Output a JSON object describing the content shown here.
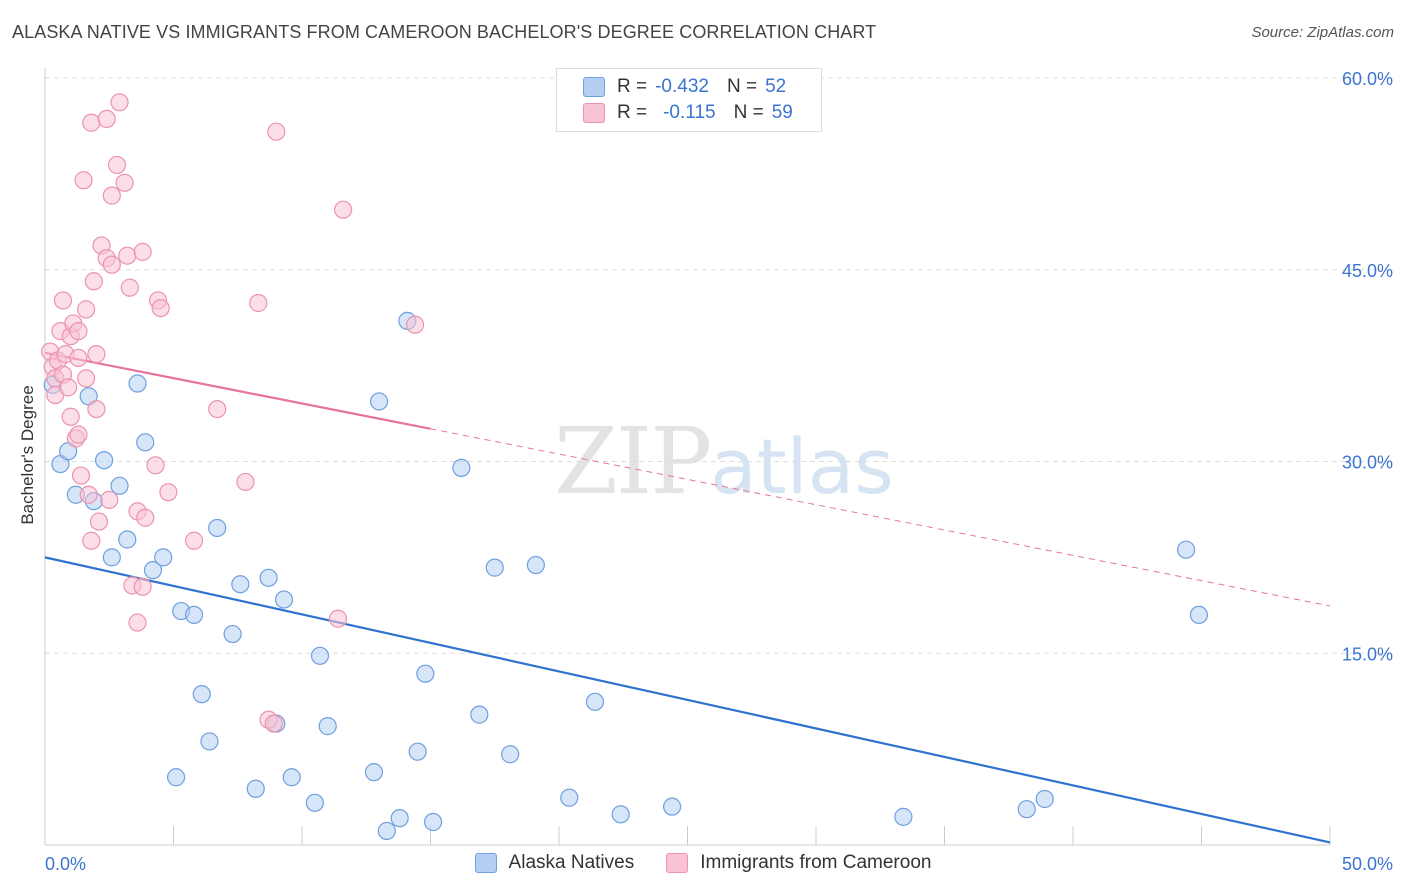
{
  "title": "ALASKA NATIVE VS IMMIGRANTS FROM CAMEROON BACHELOR'S DEGREE CORRELATION CHART",
  "source": "Source: ZipAtlas.com",
  "watermark": {
    "zip": "ZIP",
    "atlas": "atlas"
  },
  "legend": {
    "rows": [
      {
        "r_label": "R =",
        "r_value": "-0.432",
        "n_label": "N =",
        "n_value": "52"
      },
      {
        "r_label": "R =",
        "r_value": "-0.115",
        "n_label": "N =",
        "n_value": "59"
      }
    ]
  },
  "colors": {
    "blue_fill": "#b5cff2",
    "blue_stroke": "#6f9fdf",
    "blue_line": "#2f73d1",
    "pink_fill": "#f8c3d3",
    "pink_stroke": "#ec93ae",
    "pink_line": "#e7739a",
    "tick_label": "#3b74d1",
    "grid": "#dddddd"
  },
  "chart_data": {
    "type": "scatter",
    "title": "ALASKA NATIVE VS IMMIGRANTS FROM CAMEROON BACHELOR'S DEGREE CORRELATION CHART",
    "xlabel": "",
    "ylabel": "Bachelor's Degree",
    "xlim": [
      0,
      50
    ],
    "ylim": [
      0,
      60
    ],
    "x_tick_labels": [
      "0.0%",
      "50.0%"
    ],
    "y_ticks": [
      15,
      30,
      45,
      60
    ],
    "y_tick_labels": [
      "15.0%",
      "30.0%",
      "45.0%",
      "60.0%"
    ],
    "grid": true,
    "series": [
      {
        "name": "Alaska Natives",
        "color": "blue",
        "trend": {
          "x": [
            0,
            50
          ],
          "y": [
            22.5,
            0.2
          ],
          "dashed_from": null
        },
        "points": [
          [
            0.3,
            36.0
          ],
          [
            0.6,
            29.8
          ],
          [
            0.9,
            30.8
          ],
          [
            1.2,
            27.4
          ],
          [
            1.7,
            35.1
          ],
          [
            1.9,
            26.9
          ],
          [
            2.3,
            30.1
          ],
          [
            2.6,
            22.5
          ],
          [
            2.9,
            28.1
          ],
          [
            3.2,
            23.9
          ],
          [
            3.6,
            36.1
          ],
          [
            3.9,
            31.5
          ],
          [
            4.2,
            21.5
          ],
          [
            4.6,
            22.5
          ],
          [
            5.1,
            5.3
          ],
          [
            5.3,
            18.3
          ],
          [
            5.8,
            18.0
          ],
          [
            6.1,
            11.8
          ],
          [
            6.4,
            8.1
          ],
          [
            6.7,
            24.8
          ],
          [
            7.3,
            16.5
          ],
          [
            7.6,
            20.4
          ],
          [
            8.2,
            4.4
          ],
          [
            8.7,
            20.9
          ],
          [
            9.0,
            9.5
          ],
          [
            9.3,
            19.2
          ],
          [
            9.6,
            5.3
          ],
          [
            10.5,
            3.3
          ],
          [
            10.7,
            14.8
          ],
          [
            11.0,
            9.3
          ],
          [
            12.8,
            5.7
          ],
          [
            13.0,
            34.7
          ],
          [
            13.3,
            1.1
          ],
          [
            13.8,
            2.1
          ],
          [
            14.1,
            41.0
          ],
          [
            14.5,
            7.3
          ],
          [
            14.8,
            13.4
          ],
          [
            15.1,
            1.8
          ],
          [
            16.2,
            29.5
          ],
          [
            16.9,
            10.2
          ],
          [
            17.5,
            21.7
          ],
          [
            18.1,
            7.1
          ],
          [
            19.1,
            21.9
          ],
          [
            20.4,
            3.7
          ],
          [
            21.4,
            11.2
          ],
          [
            22.4,
            2.4
          ],
          [
            24.4,
            3.0
          ],
          [
            33.4,
            2.2
          ],
          [
            38.2,
            2.8
          ],
          [
            38.9,
            3.6
          ],
          [
            44.4,
            23.1
          ],
          [
            44.9,
            18.0
          ]
        ]
      },
      {
        "name": "Immigrants from Cameroon",
        "color": "pink",
        "trend": {
          "x": [
            0,
            50
          ],
          "y": [
            38.5,
            18.7
          ],
          "dashed_from": 15
        },
        "points": [
          [
            0.2,
            38.6
          ],
          [
            0.3,
            37.4
          ],
          [
            0.4,
            36.5
          ],
          [
            0.4,
            35.2
          ],
          [
            0.5,
            37.9
          ],
          [
            0.6,
            40.2
          ],
          [
            0.7,
            36.8
          ],
          [
            0.7,
            42.6
          ],
          [
            0.8,
            38.4
          ],
          [
            0.9,
            35.8
          ],
          [
            1.0,
            33.5
          ],
          [
            1.0,
            39.8
          ],
          [
            1.1,
            40.8
          ],
          [
            1.2,
            31.8
          ],
          [
            1.3,
            40.2
          ],
          [
            1.3,
            32.1
          ],
          [
            1.4,
            28.9
          ],
          [
            1.5,
            52.0
          ],
          [
            1.6,
            41.9
          ],
          [
            1.6,
            36.5
          ],
          [
            1.7,
            27.4
          ],
          [
            1.8,
            23.8
          ],
          [
            1.8,
            56.5
          ],
          [
            1.9,
            44.1
          ],
          [
            2.0,
            34.1
          ],
          [
            2.0,
            38.4
          ],
          [
            2.1,
            25.3
          ],
          [
            2.2,
            46.9
          ],
          [
            2.4,
            45.9
          ],
          [
            2.4,
            56.8
          ],
          [
            2.5,
            27.0
          ],
          [
            2.6,
            50.8
          ],
          [
            2.6,
            45.4
          ],
          [
            2.8,
            53.2
          ],
          [
            2.9,
            58.1
          ],
          [
            3.1,
            51.8
          ],
          [
            3.2,
            46.1
          ],
          [
            3.3,
            43.6
          ],
          [
            3.4,
            20.3
          ],
          [
            3.6,
            26.1
          ],
          [
            3.6,
            17.4
          ],
          [
            3.8,
            46.4
          ],
          [
            3.8,
            20.2
          ],
          [
            3.9,
            25.6
          ],
          [
            4.3,
            29.7
          ],
          [
            4.4,
            42.6
          ],
          [
            4.5,
            42.0
          ],
          [
            4.8,
            27.6
          ],
          [
            5.8,
            23.8
          ],
          [
            6.7,
            34.1
          ],
          [
            7.8,
            28.4
          ],
          [
            8.3,
            42.4
          ],
          [
            8.7,
            9.8
          ],
          [
            8.9,
            9.5
          ],
          [
            9.0,
            55.8
          ],
          [
            11.4,
            17.7
          ],
          [
            11.6,
            49.7
          ],
          [
            14.4,
            40.7
          ],
          [
            1.3,
            38.1
          ]
        ]
      }
    ]
  }
}
